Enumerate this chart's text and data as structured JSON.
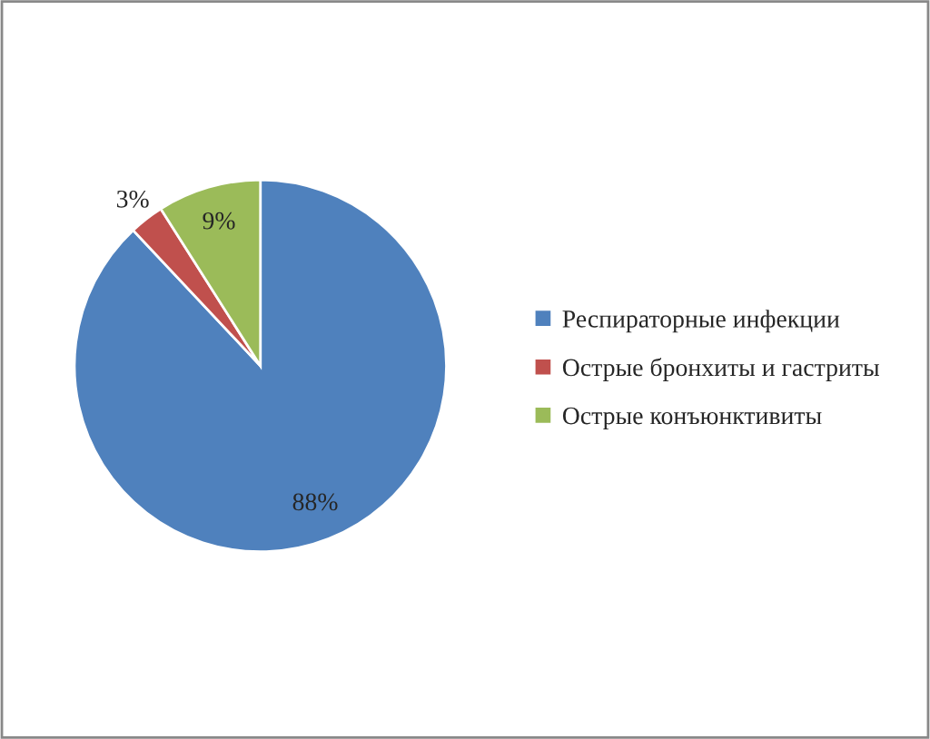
{
  "chart_data": {
    "type": "pie",
    "categories": [
      "Респираторные инфекции",
      "Острые бронхиты и гастриты",
      "Острые конъюнктивиты"
    ],
    "values": [
      88,
      3,
      9
    ],
    "colors": [
      "#4f81bd",
      "#c0504d",
      "#9bbb59"
    ],
    "value_labels": [
      "88%",
      "3%",
      "9%"
    ],
    "legend": "right"
  }
}
